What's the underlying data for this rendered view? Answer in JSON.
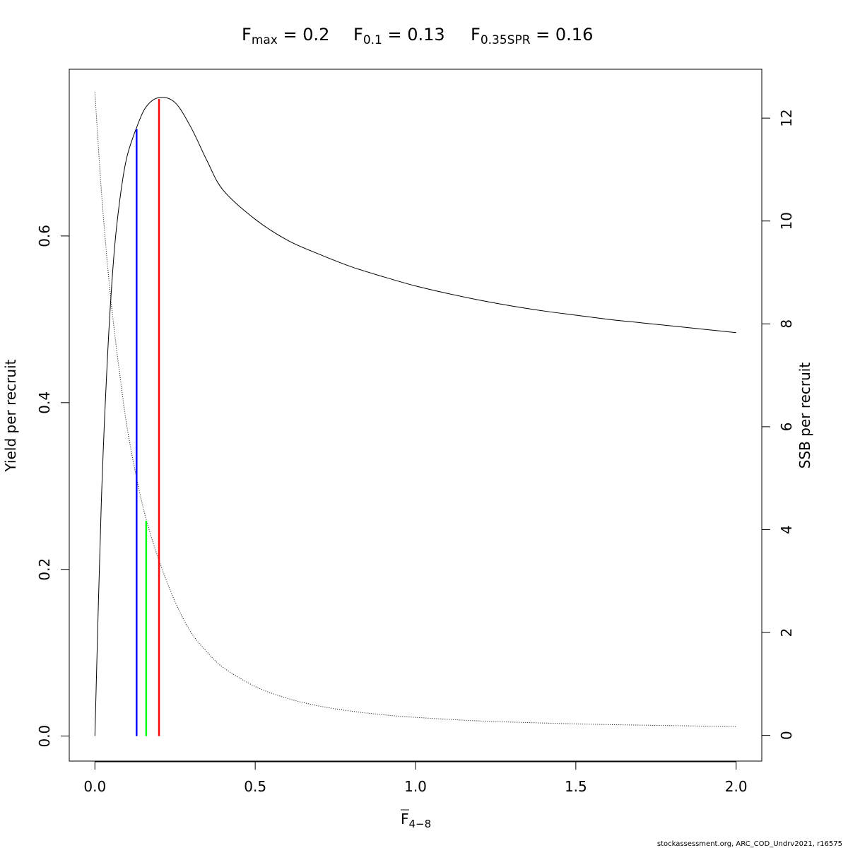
{
  "chart_data": {
    "type": "line",
    "title": {
      "fmax": {
        "base": "F",
        "sub": "max",
        "rest": " = 0.2"
      },
      "f01": {
        "base": "F",
        "sub": "0.1",
        "rest": " = 0.13"
      },
      "f035": {
        "base": "F",
        "sub": "0.35SPR",
        "rest": " = 0.16"
      }
    },
    "xlabel": {
      "base": "F",
      "sub": "4−8"
    },
    "ylabel_left": "Yield per recruit",
    "ylabel_right": "SSB per recruit",
    "xlim": [
      -0.08,
      2.08
    ],
    "ylim_left": [
      -0.03,
      0.8
    ],
    "ylim_right": [
      -0.5,
      12.95
    ],
    "x_ticks": [
      0.0,
      0.5,
      1.0,
      1.5,
      2.0
    ],
    "x_tick_labels": [
      "0.0",
      "0.5",
      "1.0",
      "1.5",
      "2.0"
    ],
    "y_left_ticks": [
      0.0,
      0.2,
      0.4,
      0.6
    ],
    "y_left_tick_labels": [
      "0.0",
      "0.2",
      "0.4",
      "0.6"
    ],
    "y_right_ticks": [
      0,
      2,
      4,
      6,
      8,
      10,
      12
    ],
    "y_right_tick_labels": [
      "0",
      "2",
      "4",
      "6",
      "8",
      "10",
      "12"
    ],
    "grid": false,
    "legend": "none",
    "series": [
      {
        "axis": "left",
        "style": "solid",
        "color": "#000000",
        "x": [
          0.0,
          0.02,
          0.04,
          0.06,
          0.08,
          0.1,
          0.13,
          0.16,
          0.2,
          0.25,
          0.3,
          0.35,
          0.4,
          0.5,
          0.6,
          0.7,
          0.8,
          0.9,
          1.0,
          1.1,
          1.2,
          1.3,
          1.4,
          1.5,
          1.6,
          1.7,
          1.8,
          1.9,
          2.0
        ],
        "y": [
          0.0,
          0.28,
          0.46,
          0.58,
          0.65,
          0.695,
          0.73,
          0.755,
          0.766,
          0.76,
          0.73,
          0.69,
          0.655,
          0.62,
          0.595,
          0.578,
          0.563,
          0.551,
          0.54,
          0.531,
          0.523,
          0.516,
          0.51,
          0.505,
          0.5,
          0.496,
          0.492,
          0.488,
          0.484
        ]
      },
      {
        "axis": "right",
        "style": "dotted",
        "color": "#000000",
        "x": [
          0.0,
          0.02,
          0.04,
          0.06,
          0.08,
          0.1,
          0.13,
          0.16,
          0.2,
          0.25,
          0.3,
          0.35,
          0.4,
          0.5,
          0.6,
          0.7,
          0.8,
          0.9,
          1.0,
          1.2,
          1.4,
          1.6,
          1.8,
          2.0
        ],
        "y": [
          12.5,
          10.6,
          9.1,
          7.9,
          6.9,
          6.0,
          5.0,
          4.2,
          3.4,
          2.6,
          2.0,
          1.62,
          1.32,
          0.95,
          0.72,
          0.57,
          0.47,
          0.4,
          0.35,
          0.28,
          0.24,
          0.21,
          0.19,
          0.17
        ]
      }
    ],
    "reference_lines": [
      {
        "name": "F0.1",
        "x": 0.13,
        "axis": "left",
        "y_top": 0.73,
        "color": "#0000ff"
      },
      {
        "name": "F0.35SPR",
        "x": 0.16,
        "axis": "right",
        "y_top": 4.2,
        "color": "#00ff00"
      },
      {
        "name": "Fmax",
        "x": 0.2,
        "axis": "left",
        "y_top": 0.766,
        "color": "#ff0000"
      }
    ]
  },
  "footer": "stockassessment.org, ARC_COD_Undrv2021, r16575"
}
